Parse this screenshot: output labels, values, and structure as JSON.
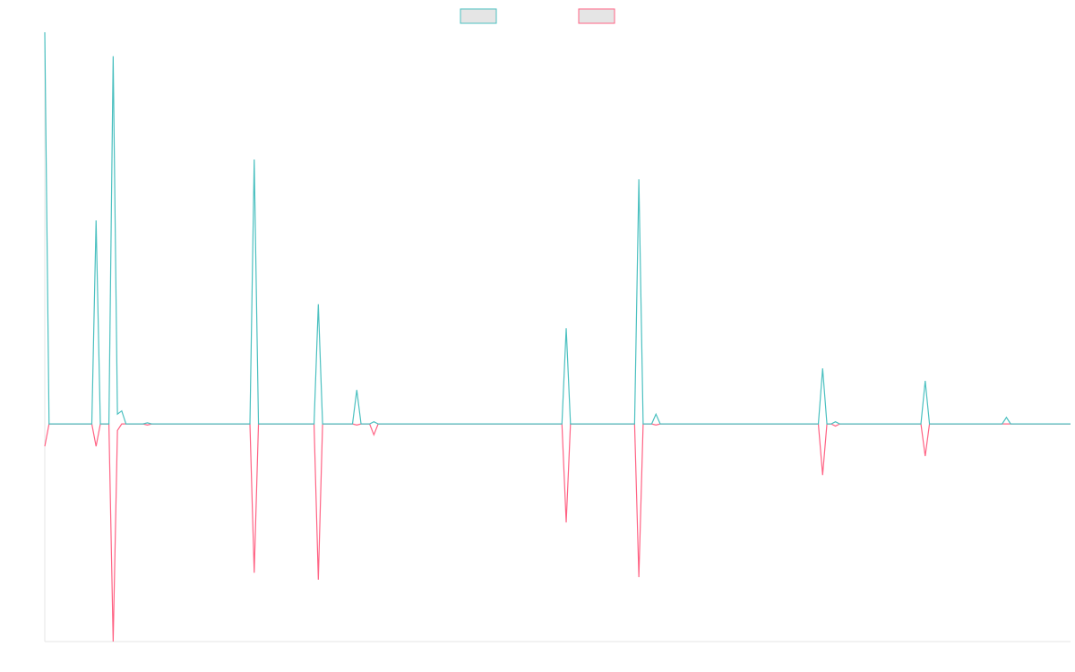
{
  "chart_data": {
    "type": "line",
    "x": [
      0,
      1,
      11,
      12,
      13,
      15,
      16,
      17,
      18,
      19,
      23,
      24,
      25,
      48,
      49,
      50,
      63,
      64,
      65,
      72,
      73,
      74,
      76,
      77,
      78,
      121,
      122,
      123,
      138,
      139,
      140,
      142,
      143,
      144,
      181,
      182,
      183,
      184,
      185,
      186,
      205,
      206,
      207,
      224,
      225,
      226,
      240
    ],
    "xlim": [
      0,
      240
    ],
    "ylim": [
      -100,
      180
    ],
    "series": [
      {
        "color": "#ff6384",
        "values": [
          -10.3,
          0,
          0,
          -10.3,
          0,
          0,
          -100,
          -3,
          0,
          0,
          0,
          -0.5,
          0,
          0,
          -68.4,
          0,
          0,
          -71.6,
          0,
          0,
          -0.5,
          0,
          0,
          -5,
          0,
          0,
          -45.3,
          0,
          0,
          -70.4,
          0,
          0,
          -0.5,
          0,
          0,
          -23.5,
          0,
          0,
          -1,
          0,
          0,
          -14.8,
          0,
          0,
          0,
          0,
          0
        ]
      },
      {
        "color": "#4bc0c0",
        "values": [
          180,
          0,
          0,
          93.5,
          0,
          0,
          169,
          4.5,
          6,
          0,
          0,
          0.5,
          0,
          0,
          121.5,
          0,
          0,
          55,
          0,
          0,
          15.6,
          0,
          0,
          1,
          0,
          0,
          44,
          0,
          0,
          112.4,
          0,
          0,
          4.5,
          0,
          0,
          25.5,
          0,
          0,
          1,
          0,
          0,
          19.8,
          0,
          0,
          3,
          0,
          0
        ]
      }
    ]
  }
}
